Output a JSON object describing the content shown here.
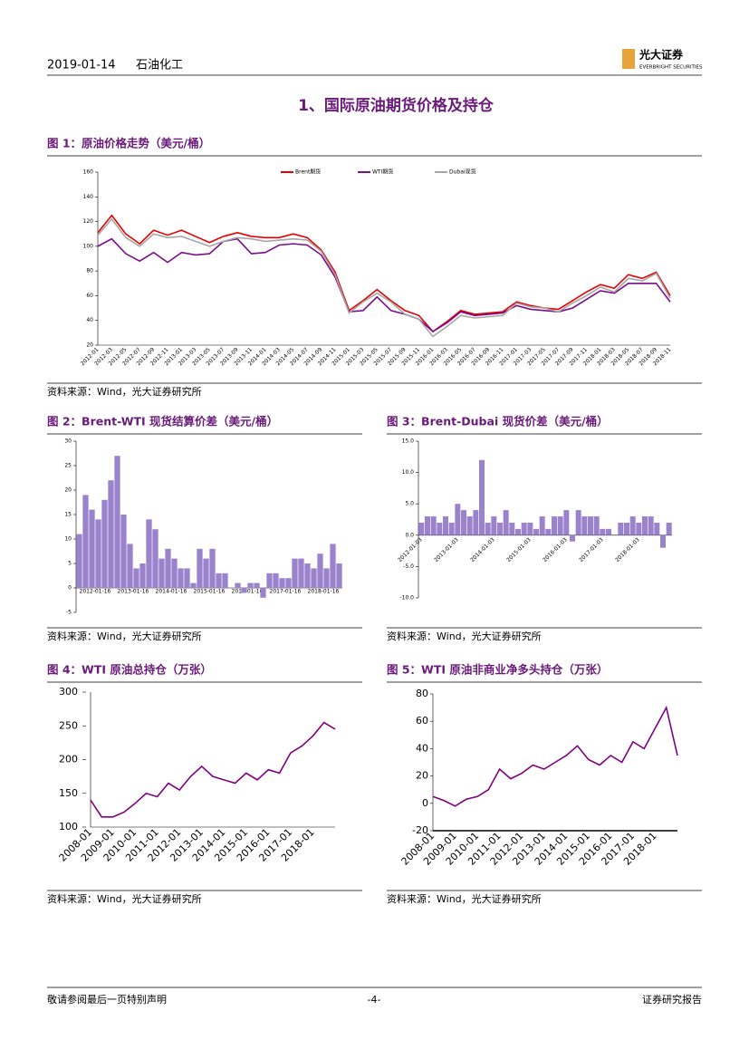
{
  "header": {
    "date": "2019-01-14",
    "section": "石油化工",
    "logo_cn": "光大证券",
    "logo_en": "EVERBRIGHT SECURITIES"
  },
  "section_title": "1、国际原油期货价格及持仓",
  "chart_data": [
    {
      "type": "line",
      "title": "图 1：原油价格走势（美元/桶）",
      "source": "资料来源：Wind，光大证券研究所",
      "categories": [
        "2012-01",
        "2012-03",
        "2012-05",
        "2012-07",
        "2012-09",
        "2012-11",
        "2013-01",
        "2013-03",
        "2013-05",
        "2013-07",
        "2013-09",
        "2013-11",
        "2014-01",
        "2014-03",
        "2014-05",
        "2014-07",
        "2014-09",
        "2014-11",
        "2015-01",
        "2015-03",
        "2015-05",
        "2015-07",
        "2015-09",
        "2015-11",
        "2016-01",
        "2016-03",
        "2016-05",
        "2016-07",
        "2016-09",
        "2016-11",
        "2017-01",
        "2017-03",
        "2017-05",
        "2017-07",
        "2017-09",
        "2017-11",
        "2018-01",
        "2018-03",
        "2018-05",
        "2018-07",
        "2018-09",
        "2018-11"
      ],
      "series": [
        {
          "name": "Brent期货",
          "color": "#e60000",
          "values": [
            111,
            125,
            110,
            102,
            113,
            109,
            113,
            108,
            103,
            108,
            111,
            108,
            107,
            107,
            110,
            107,
            97,
            79,
            48,
            56,
            65,
            56,
            48,
            44,
            31,
            39,
            48,
            45,
            46,
            47,
            55,
            52,
            50,
            49,
            56,
            63,
            69,
            66,
            77,
            74,
            79,
            60
          ]
        },
        {
          "name": "WTI期货",
          "color": "#7b0e8c",
          "values": [
            100,
            106,
            94,
            88,
            95,
            87,
            95,
            93,
            94,
            104,
            106,
            94,
            95,
            101,
            102,
            101,
            93,
            75,
            47,
            48,
            59,
            48,
            45,
            41,
            31,
            38,
            47,
            44,
            45,
            46,
            52,
            49,
            48,
            47,
            50,
            57,
            64,
            62,
            70,
            70,
            70,
            55
          ]
        },
        {
          "name": "Dubai现货",
          "color": "#a6a6a6",
          "values": [
            109,
            122,
            107,
            100,
            110,
            107,
            108,
            104,
            100,
            104,
            107,
            106,
            104,
            105,
            106,
            105,
            96,
            77,
            46,
            55,
            62,
            55,
            45,
            41,
            27,
            35,
            44,
            42,
            43,
            44,
            54,
            51,
            50,
            47,
            54,
            60,
            67,
            63,
            74,
            72,
            78,
            58
          ]
        }
      ],
      "ylim": [
        20,
        160
      ],
      "yticks": [
        20,
        40,
        60,
        80,
        100,
        120,
        140,
        160
      ]
    },
    {
      "type": "bar",
      "title": "图 2：Brent-WTI 现货结算价差（美元/桶）",
      "source": "资料来源：Wind，光大证券研究所",
      "color": "#9b82cc",
      "categories": [
        "2012-01-16",
        null,
        null,
        null,
        null,
        null,
        "2013-01-16",
        null,
        null,
        null,
        null,
        null,
        "2014-01-16",
        null,
        null,
        null,
        null,
        null,
        "2015-01-16",
        null,
        null,
        null,
        null,
        null,
        "2016-01-16",
        null,
        null,
        null,
        null,
        null,
        "2017-01-16",
        null,
        null,
        null,
        null,
        null,
        "2018-01-16",
        null,
        null,
        null,
        null,
        null
      ],
      "values": [
        11,
        19,
        16,
        14,
        18,
        22,
        27,
        15,
        9,
        4,
        5,
        14,
        12,
        6,
        8,
        6,
        4,
        4,
        1,
        8,
        6,
        8,
        3,
        3,
        0,
        1,
        -1,
        1,
        1,
        -2,
        3,
        3,
        2,
        2,
        6,
        6,
        5,
        4,
        7,
        4,
        9,
        5
      ],
      "ylim": [
        -5,
        30
      ],
      "yticks": [
        -5,
        0,
        5,
        10,
        15,
        20,
        25,
        30
      ]
    },
    {
      "type": "bar",
      "title": "图 3：Brent-Dubai 现货价差（美元/桶）",
      "source": "资料来源：Wind，光大证券研究所",
      "color": "#9b82cc",
      "categories": [
        "2012-01-03",
        null,
        null,
        null,
        null,
        null,
        "2013-01-03",
        null,
        null,
        null,
        null,
        null,
        "2014-01-03",
        null,
        null,
        null,
        null,
        null,
        "2015-01-03",
        null,
        null,
        null,
        null,
        null,
        "2016-01-03",
        null,
        null,
        null,
        null,
        null,
        "2017-01-03",
        null,
        null,
        null,
        null,
        null,
        "2018-01-03",
        null,
        null,
        null,
        null,
        null
      ],
      "values": [
        2,
        3,
        3,
        2,
        3,
        2,
        5,
        4,
        3,
        4,
        12,
        2,
        3,
        2,
        4,
        2,
        1,
        2,
        2,
        1,
        3,
        1,
        3,
        3,
        4,
        -1,
        4,
        3,
        3,
        3,
        1,
        1,
        0,
        2,
        2,
        3,
        2,
        3,
        3,
        2,
        -2,
        2
      ],
      "ylim": [
        -10,
        15
      ],
      "yticks": [
        {
          "value": -10,
          "label": "-10.0"
        },
        {
          "value": -5,
          "label": "-5.0"
        },
        {
          "value": 0,
          "label": "0.0"
        },
        {
          "value": 5,
          "label": "5.0"
        },
        {
          "value": 10,
          "label": "10.0"
        },
        {
          "value": 15,
          "label": "15.0"
        }
      ]
    },
    {
      "type": "line",
      "title": "图 4：WTI 原油总持仓（万张）",
      "source": "资料来源：Wind，光大证券研究所",
      "color": "#800080",
      "categories": [
        "2008-01",
        null,
        "2009-01",
        null,
        "2010-01",
        null,
        "2011-01",
        null,
        "2012-01",
        null,
        "2013-01",
        null,
        "2014-01",
        null,
        "2015-01",
        null,
        "2016-01",
        null,
        "2017-01",
        null,
        "2018-01",
        null,
        null
      ],
      "values": [
        140,
        115,
        115,
        122,
        135,
        150,
        145,
        165,
        155,
        175,
        190,
        175,
        170,
        165,
        180,
        170,
        185,
        180,
        210,
        220,
        235,
        255,
        245
      ],
      "ylim": [
        100,
        300
      ],
      "yticks": [
        100,
        150,
        200,
        250,
        300
      ]
    },
    {
      "type": "line",
      "title": "图 5：WTI 原油非商业净多头持仓（万张）",
      "source": "资料来源：Wind，光大证券研究所",
      "color": "#800080",
      "categories": [
        "2008-01",
        null,
        "2009-01",
        null,
        "2010-01",
        null,
        "2011-01",
        null,
        "2012-01",
        null,
        "2013-01",
        null,
        "2014-01",
        null,
        "2015-01",
        null,
        "2016-01",
        null,
        "2017-01",
        null,
        "2018-01",
        null,
        null
      ],
      "values": [
        5,
        2,
        -2,
        3,
        5,
        10,
        25,
        18,
        22,
        28,
        25,
        30,
        35,
        42,
        32,
        28,
        35,
        30,
        45,
        40,
        55,
        70,
        35
      ],
      "ylim": [
        -20,
        80
      ],
      "yticks": [
        -20,
        0,
        20,
        40,
        60,
        80
      ]
    }
  ],
  "footer": {
    "left": "敬请参阅最后一页特别声明",
    "page": "-4-",
    "right": "证券研究报告"
  }
}
